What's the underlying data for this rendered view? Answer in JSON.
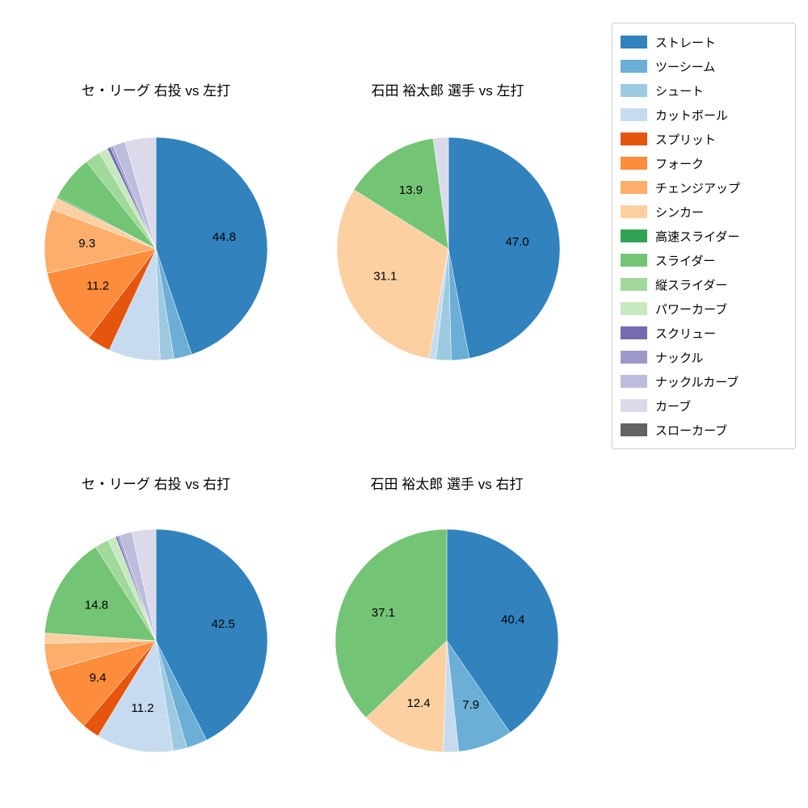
{
  "page": {
    "background": "#ffffff"
  },
  "legend": {
    "items": [
      {
        "label": "ストレート",
        "color": "#3182bd"
      },
      {
        "label": "ツーシーム",
        "color": "#6baed6"
      },
      {
        "label": "シュート",
        "color": "#9ecae1"
      },
      {
        "label": "カットボール",
        "color": "#c6dbef"
      },
      {
        "label": "スプリット",
        "color": "#e6550d"
      },
      {
        "label": "フォーク",
        "color": "#fd8d3c"
      },
      {
        "label": "チェンジアップ",
        "color": "#fdae6b"
      },
      {
        "label": "シンカー",
        "color": "#fdd0a2"
      },
      {
        "label": "高速スライダー",
        "color": "#31a354"
      },
      {
        "label": "スライダー",
        "color": "#74c476"
      },
      {
        "label": "縦スライダー",
        "color": "#a1d99b"
      },
      {
        "label": "パワーカーブ",
        "color": "#c7e9c0"
      },
      {
        "label": "スクリュー",
        "color": "#756bb1"
      },
      {
        "label": "ナックル",
        "color": "#9e9ac8"
      },
      {
        "label": "ナックルカーブ",
        "color": "#bcbddc"
      },
      {
        "label": "カーブ",
        "color": "#dadaeb"
      },
      {
        "label": "スローカーブ",
        "color": "#636363"
      }
    ]
  },
  "chart_data": [
    {
      "type": "pie",
      "title": "セ・リーグ 右投 vs 左打",
      "start_angle_deg": 90,
      "direction": "clockwise",
      "label_threshold": 7.8,
      "slices": [
        {
          "label": "ストレート",
          "value": 44.8
        },
        {
          "label": "ツーシーム",
          "value": 2.6
        },
        {
          "label": "シュート",
          "value": 2.0
        },
        {
          "label": "カットボール",
          "value": 7.5
        },
        {
          "label": "スプリット",
          "value": 3.4
        },
        {
          "label": "フォーク",
          "value": 11.2
        },
        {
          "label": "チェンジアップ",
          "value": 9.3
        },
        {
          "label": "シンカー",
          "value": 1.8
        },
        {
          "label": "高速スライダー",
          "value": 0.2
        },
        {
          "label": "スライダー",
          "value": 6.5
        },
        {
          "label": "縦スライダー",
          "value": 2.2
        },
        {
          "label": "パワーカーブ",
          "value": 1.3
        },
        {
          "label": "スクリュー",
          "value": 0.5
        },
        {
          "label": "ナックル",
          "value": 0.4
        },
        {
          "label": "ナックルカーブ",
          "value": 1.8
        },
        {
          "label": "カーブ",
          "value": 4.5
        }
      ]
    },
    {
      "type": "pie",
      "title": "石田 裕太郎 選手 vs 左打",
      "start_angle_deg": 90,
      "direction": "clockwise",
      "label_threshold": 7.8,
      "slices": [
        {
          "label": "ストレート",
          "value": 47.0
        },
        {
          "label": "ツーシーム",
          "value": 2.6
        },
        {
          "label": "シュート",
          "value": 2.2
        },
        {
          "label": "カットボール",
          "value": 1.0
        },
        {
          "label": "シンカー",
          "value": 31.1
        },
        {
          "label": "スライダー",
          "value": 13.9
        },
        {
          "label": "カーブ",
          "value": 2.2
        }
      ]
    },
    {
      "type": "pie",
      "title": "セ・リーグ 右投 vs 右打",
      "start_angle_deg": 90,
      "direction": "clockwise",
      "label_threshold": 7.8,
      "slices": [
        {
          "label": "ストレート",
          "value": 42.5
        },
        {
          "label": "ツーシーム",
          "value": 3.0
        },
        {
          "label": "シュート",
          "value": 2.0
        },
        {
          "label": "カットボール",
          "value": 11.2
        },
        {
          "label": "スプリット",
          "value": 2.5
        },
        {
          "label": "フォーク",
          "value": 9.4
        },
        {
          "label": "チェンジアップ",
          "value": 4.0
        },
        {
          "label": "シンカー",
          "value": 1.5
        },
        {
          "label": "スライダー",
          "value": 14.8
        },
        {
          "label": "縦スライダー",
          "value": 2.0
        },
        {
          "label": "パワーカーブ",
          "value": 1.2
        },
        {
          "label": "スクリュー",
          "value": 0.3
        },
        {
          "label": "ナックル",
          "value": 0.3
        },
        {
          "label": "ナックルカーブ",
          "value": 1.8
        },
        {
          "label": "カーブ",
          "value": 3.5
        }
      ]
    },
    {
      "type": "pie",
      "title": "石田 裕太郎 選手 vs 右打",
      "start_angle_deg": 90,
      "direction": "clockwise",
      "label_threshold": 7.8,
      "slices": [
        {
          "label": "ストレート",
          "value": 40.4
        },
        {
          "label": "ツーシーム",
          "value": 7.9
        },
        {
          "label": "カットボール",
          "value": 2.2
        },
        {
          "label": "シンカー",
          "value": 12.4
        },
        {
          "label": "スライダー",
          "value": 37.1
        }
      ]
    }
  ]
}
